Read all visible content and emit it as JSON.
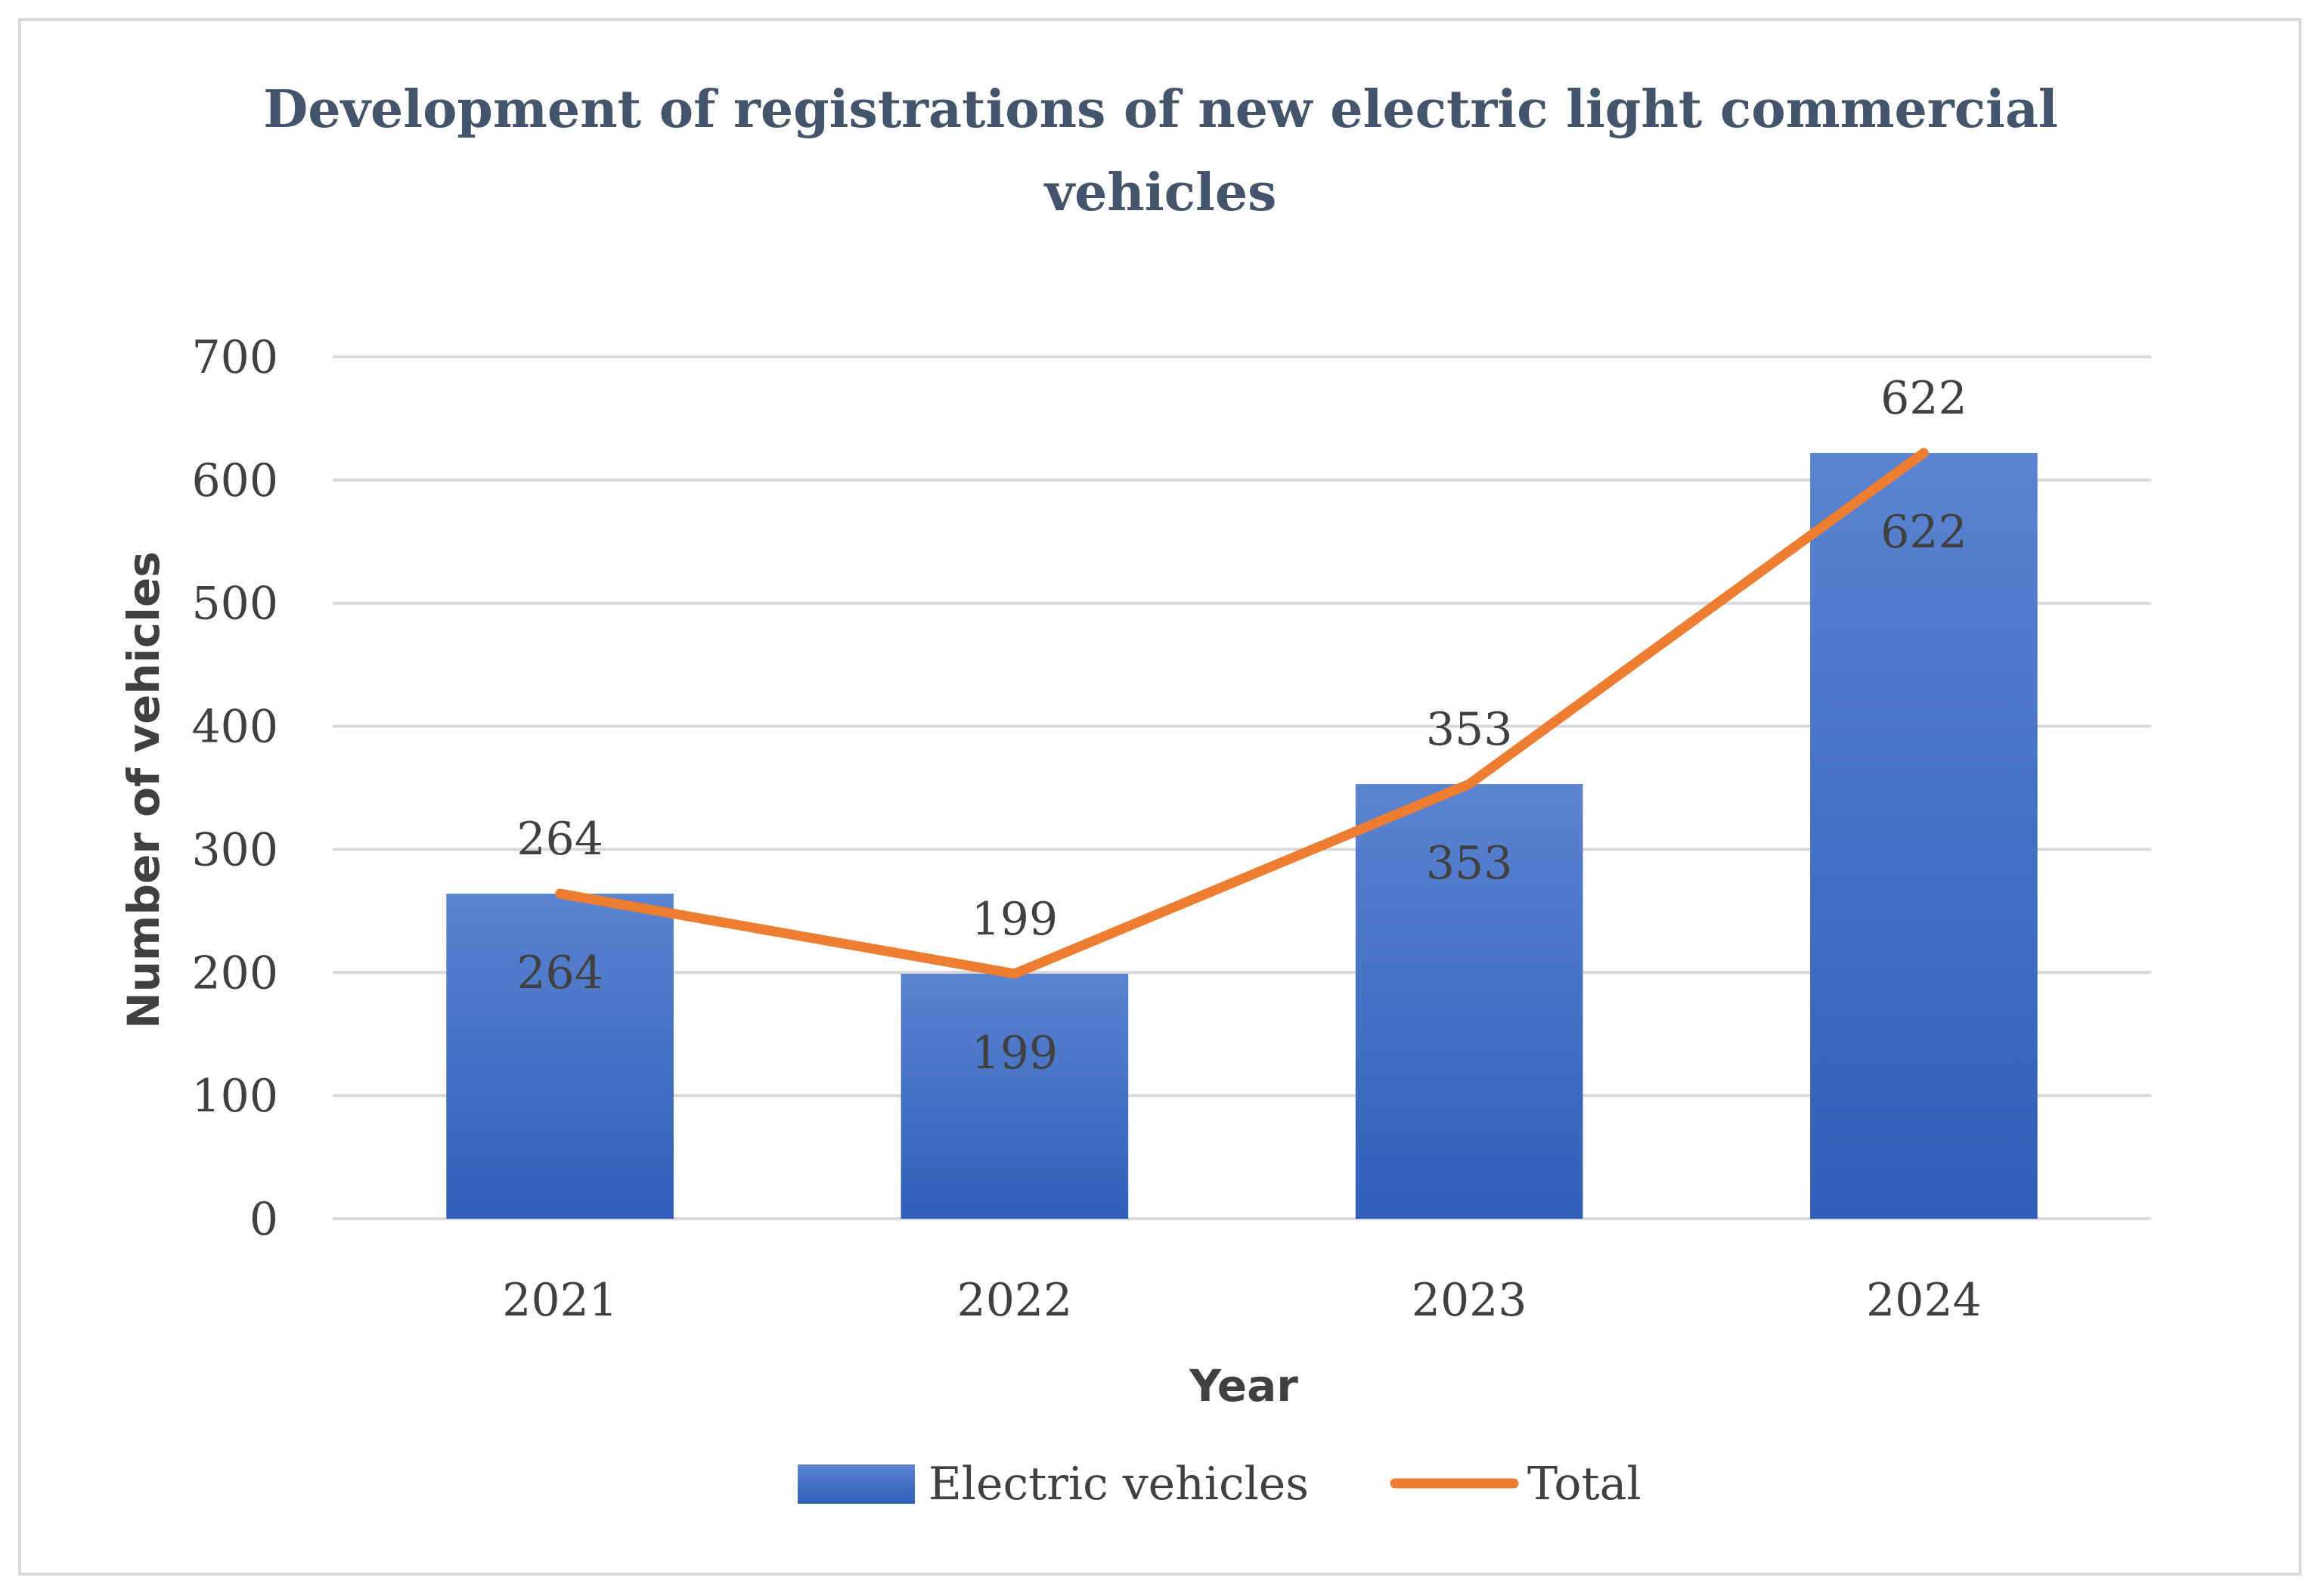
{
  "chart_data": {
    "type": "bar",
    "title_lines": [
      "Development of registrations of new electric light commercial",
      "vehicles"
    ],
    "xlabel": "Year",
    "ylabel": "Number of vehicles",
    "categories": [
      "2021",
      "2022",
      "2023",
      "2024"
    ],
    "series": [
      {
        "name": "Electric vehicles",
        "type": "bar",
        "color": "#4472c4",
        "values": [
          264,
          199,
          353,
          622
        ]
      },
      {
        "name": "Total",
        "type": "line",
        "color": "#ed7d31",
        "values": [
          264,
          199,
          353,
          622
        ]
      }
    ],
    "ylim": [
      0,
      700
    ],
    "yticks": [
      0,
      100,
      200,
      300,
      400,
      500,
      600,
      700
    ],
    "grid": true,
    "legend_position": "bottom",
    "colors": {
      "bar_top": "#5b84d0",
      "bar_bottom": "#2f5fb8",
      "line": "#ed7d31",
      "grid": "#d9d9d9",
      "text": "#404040",
      "title": "#44546a"
    }
  }
}
